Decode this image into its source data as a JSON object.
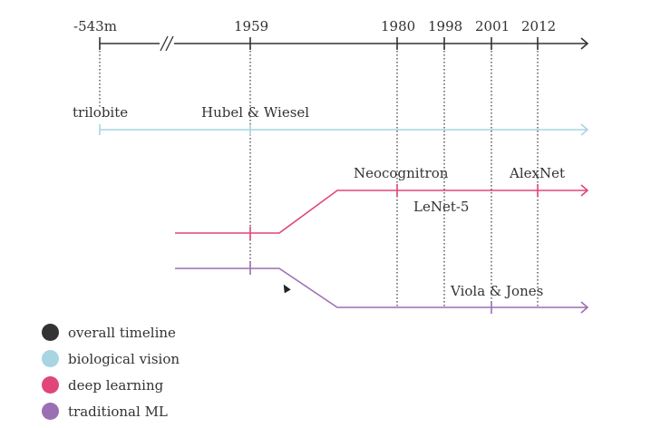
{
  "colors": {
    "overall": "#333333",
    "biological": "#a7d5e2",
    "deep_learning": "#e0457b",
    "traditional": "#9b6fb4"
  },
  "timeline": {
    "years": [
      "-543m",
      "1959",
      "1980",
      "1998",
      "2001",
      "2012"
    ]
  },
  "events": {
    "trilobite": "trilobite",
    "hubel_wiesel": "Hubel & Wiesel",
    "neocognitron": "Neocognitron",
    "lenet": "LeNet-5",
    "alexnet": "AlexNet",
    "viola_jones": "Viola & Jones"
  },
  "legend": [
    {
      "label": "overall timeline",
      "color": "#333333"
    },
    {
      "label": "biological vision",
      "color": "#a7d5e2"
    },
    {
      "label": "deep learning",
      "color": "#e0457b"
    },
    {
      "label": "traditional ML",
      "color": "#9b6fb4"
    }
  ],
  "cursor_icon": "mouse-pointer-icon"
}
